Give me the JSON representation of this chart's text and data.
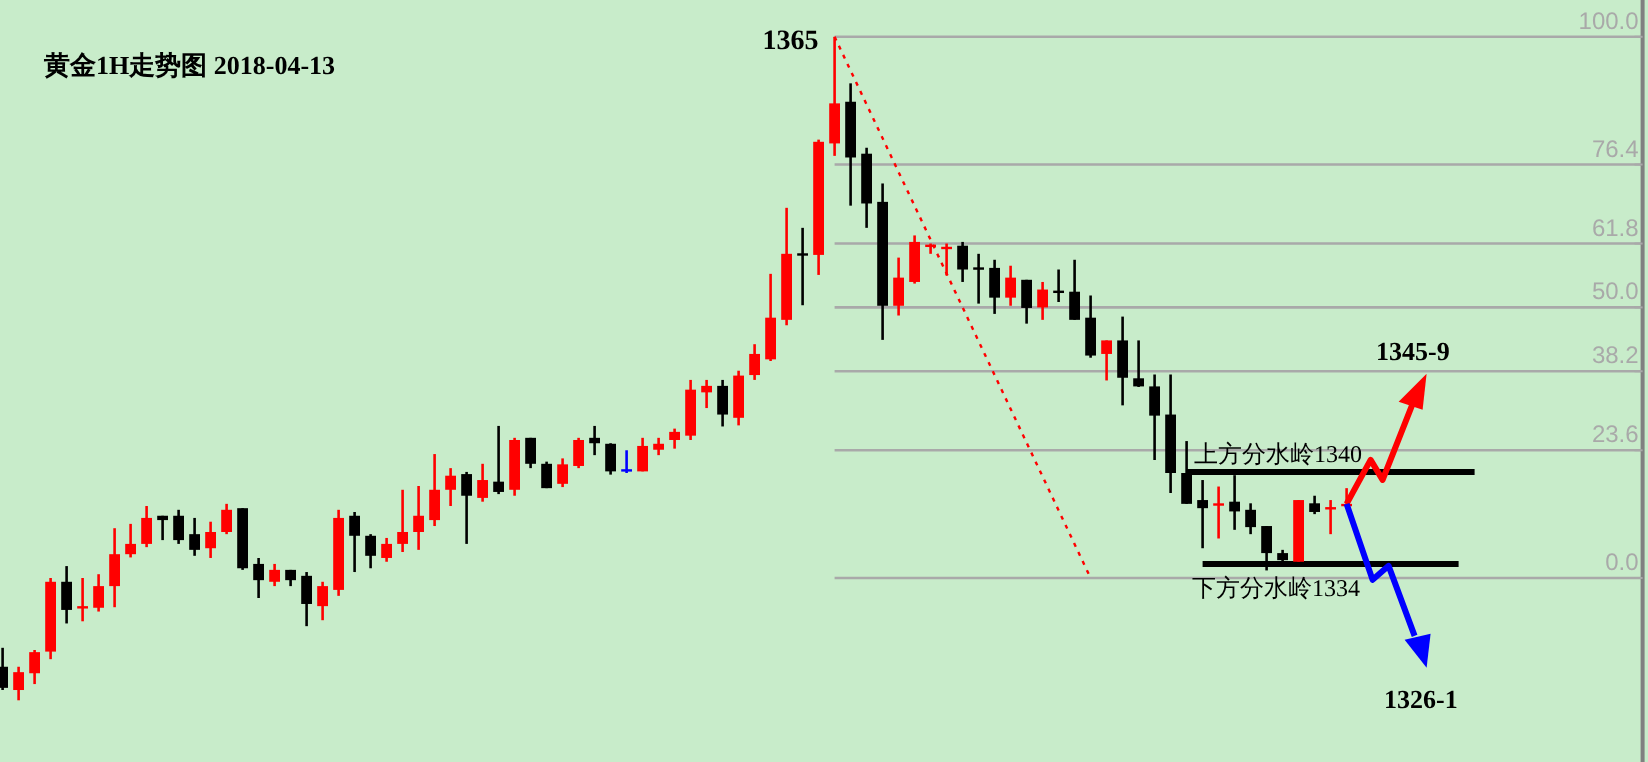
{
  "chart_data": {
    "type": "candlestick",
    "title": "黄金1H走势图 2018-04-13",
    "categories": [
      null,
      null,
      null,
      null,
      null,
      null,
      null,
      null,
      null,
      null,
      null,
      null,
      null,
      null,
      null,
      null,
      null,
      null,
      null,
      null,
      null,
      null,
      null,
      null,
      null,
      null,
      null,
      null,
      null,
      null,
      null,
      null,
      null,
      null,
      null,
      null,
      null,
      null,
      null,
      null,
      null,
      null,
      null,
      null,
      null,
      null,
      null,
      null,
      null,
      null,
      null,
      null,
      null,
      null,
      null,
      null,
      null,
      null,
      null,
      null,
      null,
      null,
      null,
      null,
      null,
      null,
      null,
      null,
      null,
      null,
      null,
      null,
      null,
      null,
      null,
      null,
      null,
      null,
      null,
      null,
      null,
      null,
      null,
      null,
      null,
      null,
      null,
      null,
      null,
      null,
      null,
      null,
      null,
      null,
      null,
      null,
      null,
      null,
      null,
      null,
      null,
      null,
      null
    ],
    "ohlc": [
      [
        -16.4,
        -12.9,
        -20.7,
        -20.3
      ],
      [
        -20.7,
        -16.4,
        -22.6,
        -17.4
      ],
      [
        -17.6,
        -13.3,
        -19.6,
        -13.7
      ],
      [
        -13.6,
        0,
        -15,
        -0.7
      ],
      [
        -0.7,
        2.2,
        -8.4,
        -5.9
      ],
      [
        -5.4,
        0,
        -8,
        -5.2
      ],
      [
        -5.5,
        0.7,
        -6.2,
        -1.5
      ],
      [
        -1.5,
        9.2,
        -5.4,
        4.4
      ],
      [
        4.4,
        10,
        3.8,
        6.3
      ],
      [
        6.3,
        13.3,
        5.7,
        11.1
      ],
      [
        11.5,
        11.5,
        7,
        10.7
      ],
      [
        11.5,
        12.6,
        6.3,
        7
      ],
      [
        8.1,
        11.1,
        4.1,
        5.2
      ],
      [
        5.5,
        10.4,
        3.7,
        8.5
      ],
      [
        8.5,
        13.7,
        8.1,
        12.6
      ],
      [
        12.9,
        12.9,
        1.5,
        1.8
      ],
      [
        2.6,
        3.7,
        -3.7,
        -0.4
      ],
      [
        -0.7,
        2.6,
        -1.5,
        1.5
      ],
      [
        1.5,
        1.5,
        -1.5,
        -0.4
      ],
      [
        0.4,
        1.1,
        -8.9,
        -4.8
      ],
      [
        -5.2,
        -0.7,
        -7.8,
        -1.5
      ],
      [
        -2.2,
        12.6,
        -3.3,
        11.1
      ],
      [
        11.5,
        12.2,
        1.1,
        7.8
      ],
      [
        7.8,
        8.1,
        1.8,
        4.1
      ],
      [
        3.7,
        7.4,
        3,
        6.3
      ],
      [
        6.3,
        16.3,
        4.8,
        8.5
      ],
      [
        8.5,
        17,
        5.2,
        11.5
      ],
      [
        10.7,
        22.9,
        9.6,
        16.3
      ],
      [
        16.3,
        20.3,
        13.3,
        18.9
      ],
      [
        19.2,
        19.6,
        6.3,
        15.2
      ],
      [
        14.8,
        21.1,
        14.1,
        18.1
      ],
      [
        17.8,
        28.1,
        15.5,
        15.9
      ],
      [
        16.3,
        25.9,
        15.2,
        25.5
      ],
      [
        25.9,
        25.9,
        20.3,
        21.1
      ],
      [
        21.1,
        21.5,
        16.6,
        16.6
      ],
      [
        17.4,
        22.1,
        16.8,
        21
      ],
      [
        20.7,
        25.9,
        20.3,
        25.5
      ],
      [
        25.9,
        28.1,
        22.7,
        24.9
      ],
      [
        24.8,
        24.9,
        19.1,
        19.7
      ],
      [
        20.1,
        23.6,
        19.4,
        20.1
      ],
      [
        19.7,
        25.9,
        19.7,
        24.4
      ],
      [
        23.7,
        25.9,
        22.7,
        24.8
      ],
      [
        25.5,
        27.6,
        23.9,
        27
      ],
      [
        26.3,
        36.6,
        25.5,
        34.8
      ],
      [
        34.3,
        36.6,
        31.4,
        35.5
      ],
      [
        35.5,
        36.6,
        28,
        30.2
      ],
      [
        29.6,
        38.3,
        28.2,
        37.4
      ],
      [
        37.5,
        43.2,
        36.6,
        41.4
      ],
      [
        40.4,
        56.2,
        40.1,
        48.1
      ],
      [
        47.7,
        68.4,
        46.7,
        59.9
      ],
      [
        60,
        64.7,
        50.4,
        59.8
      ],
      [
        59.7,
        81,
        56,
        80.6
      ],
      [
        80.3,
        100,
        78,
        87.7
      ],
      [
        88,
        91.4,
        68.8,
        77.7
      ],
      [
        78.4,
        79.5,
        64.7,
        69.2
      ],
      [
        69.5,
        72.9,
        44,
        50.3
      ],
      [
        50.3,
        59.2,
        48.5,
        55.5
      ],
      [
        54.7,
        63.3,
        54.4,
        62.1
      ],
      [
        61.4,
        61.8,
        59.9,
        61.6
      ],
      [
        61,
        61.8,
        55.9,
        61.2
      ],
      [
        61.4,
        62.1,
        54.7,
        57
      ],
      [
        57.4,
        59.9,
        50.7,
        57.2
      ],
      [
        57.3,
        58.8,
        48.8,
        51.8
      ],
      [
        51.8,
        57.7,
        50.3,
        55.5
      ],
      [
        55.1,
        55.1,
        47,
        49.9
      ],
      [
        50,
        54.7,
        47.7,
        53.3
      ],
      [
        53.1,
        57,
        51,
        52.9
      ],
      [
        52.9,
        58.8,
        47.7,
        47.7
      ],
      [
        48.1,
        52.2,
        40.7,
        41.1
      ],
      [
        41.4,
        43.9,
        36.5,
        43.9
      ],
      [
        43.9,
        48.3,
        31.9,
        37
      ],
      [
        36.9,
        43.9,
        35.3,
        35.4
      ],
      [
        35.4,
        37.6,
        21.8,
        30
      ],
      [
        30.2,
        37.6,
        15.7,
        19.4
      ],
      [
        19.4,
        25.3,
        13.7,
        13.7
      ],
      [
        14.4,
        18.1,
        5.5,
        12.9
      ],
      [
        13.6,
        16.9,
        7.3,
        13.8
      ],
      [
        14.1,
        19,
        8.9,
        12.3
      ],
      [
        12.6,
        13.8,
        8.1,
        9.4
      ],
      [
        9.6,
        9.6,
        1.4,
        4.6
      ],
      [
        4.6,
        5.2,
        3.1,
        3.3
      ],
      [
        3,
        14.4,
        3,
        14.4
      ],
      [
        13.8,
        15.2,
        11.8,
        12.2
      ],
      [
        12.8,
        14.4,
        8.1,
        13.1
      ],
      [
        13.4,
        16.6,
        12.9,
        13.7
      ],
      null,
      null,
      null,
      null,
      null,
      null,
      null,
      null,
      null,
      null,
      null,
      null,
      null,
      null,
      null,
      null,
      null,
      null
    ],
    "colors": [
      "#000000",
      "#ff0000",
      "#ff0000",
      "#ff0000",
      "#000000",
      "#ff0000",
      "#ff0000",
      "#ff0000",
      "#ff0000",
      "#ff0000",
      "#000000",
      "#000000",
      "#000000",
      "#ff0000",
      "#ff0000",
      "#000000",
      "#000000",
      "#ff0000",
      "#000000",
      "#000000",
      "#ff0000",
      "#ff0000",
      "#000000",
      "#000000",
      "#ff0000",
      "#ff0000",
      "#ff0000",
      "#ff0000",
      "#ff0000",
      "#000000",
      "#ff0000",
      "#000000",
      "#ff0000",
      "#000000",
      "#000000",
      "#ff0000",
      "#ff0000",
      "#000000",
      "#000000",
      "#0000ff",
      "#ff0000",
      "#ff0000",
      "#ff0000",
      "#ff0000",
      "#ff0000",
      "#000000",
      "#ff0000",
      "#ff0000",
      "#ff0000",
      "#ff0000",
      "#000000",
      "#ff0000",
      "#ff0000",
      "#000000",
      "#000000",
      "#000000",
      "#ff0000",
      "#ff0000",
      "#ff0000",
      "#ff0000",
      "#000000",
      "#000000",
      "#000000",
      "#ff0000",
      "#000000",
      "#ff0000",
      "#000000",
      "#000000",
      "#000000",
      "#ff0000",
      "#000000",
      "#000000",
      "#000000",
      "#000000",
      "#000000",
      "#000000",
      "#ff0000",
      "#000000",
      "#000000",
      "#000000",
      "#000000",
      "#ff0000",
      "#000000",
      "#ff0000",
      "#ff0000",
      null,
      null,
      null,
      null,
      null,
      null,
      null,
      null,
      null,
      null,
      null,
      null,
      null,
      null,
      null,
      null,
      null,
      null
    ],
    "series": [
      {
        "type": "line",
        "color": "#ff0000",
        "line_style": "dotted",
        "values": [
          null,
          null,
          null,
          null,
          null,
          null,
          null,
          null,
          null,
          null,
          null,
          null,
          null,
          null,
          null,
          null,
          null,
          null,
          null,
          null,
          null,
          null,
          null,
          null,
          null,
          null,
          null,
          null,
          null,
          null,
          null,
          null,
          null,
          null,
          null,
          null,
          null,
          null,
          null,
          null,
          null,
          null,
          null,
          null,
          null,
          null,
          null,
          null,
          null,
          null,
          null,
          null,
          100,
          null,
          null,
          null,
          null,
          null,
          null,
          null,
          null,
          null,
          null,
          null,
          null,
          null,
          null,
          null,
          0,
          null,
          null,
          null,
          null,
          null,
          null,
          null,
          null,
          null,
          null,
          null,
          null,
          null,
          null,
          null,
          null,
          null,
          null,
          null,
          null,
          null,
          null,
          null,
          null,
          null,
          null,
          null,
          null,
          null,
          null,
          null,
          null,
          null,
          null
        ]
      },
      {
        "type": "line",
        "color": "#000000",
        "line_style": "solid",
        "values": [
          null,
          null,
          null,
          null,
          null,
          null,
          null,
          null,
          null,
          null,
          null,
          null,
          null,
          null,
          null,
          null,
          null,
          null,
          null,
          null,
          null,
          null,
          null,
          null,
          null,
          null,
          null,
          null,
          null,
          null,
          null,
          null,
          null,
          null,
          null,
          null,
          null,
          null,
          null,
          null,
          null,
          null,
          null,
          null,
          null,
          null,
          null,
          null,
          null,
          null,
          null,
          null,
          null,
          null,
          null,
          null,
          null,
          null,
          null,
          null,
          null,
          null,
          null,
          null,
          null,
          null,
          null,
          null,
          null,
          null,
          null,
          null,
          null,
          null,
          19.6,
          null,
          null,
          null,
          null,
          null,
          null,
          null,
          null,
          null,
          null,
          null,
          null,
          null,
          null,
          null,
          null,
          null,
          19.6,
          null,
          null,
          null,
          null,
          null,
          null,
          null,
          null,
          null,
          null
        ]
      },
      {
        "type": "line",
        "color": "#000000",
        "line_style": "solid",
        "values": [
          null,
          null,
          null,
          null,
          null,
          null,
          null,
          null,
          null,
          null,
          null,
          null,
          null,
          null,
          null,
          null,
          null,
          null,
          null,
          null,
          null,
          null,
          null,
          null,
          null,
          null,
          null,
          null,
          null,
          null,
          null,
          null,
          null,
          null,
          null,
          null,
          null,
          null,
          null,
          null,
          null,
          null,
          null,
          null,
          null,
          null,
          null,
          null,
          null,
          null,
          null,
          null,
          null,
          null,
          null,
          null,
          null,
          null,
          null,
          null,
          null,
          null,
          null,
          null,
          null,
          null,
          null,
          null,
          null,
          null,
          null,
          null,
          null,
          null,
          null,
          2.6,
          null,
          null,
          null,
          null,
          null,
          null,
          null,
          null,
          null,
          null,
          null,
          null,
          null,
          null,
          null,
          2.6,
          null,
          null,
          null,
          null,
          null,
          null,
          null,
          null,
          null,
          null,
          null
        ]
      }
    ],
    "ylim": [
      -34,
      106.8
    ],
    "yticks": [
      {
        "value": 0,
        "label": "0.0"
      },
      {
        "value": 23.6,
        "label": "23.6"
      },
      {
        "value": 38.2,
        "label": "38.2"
      },
      {
        "value": 50,
        "label": "50.0"
      },
      {
        "value": 61.8,
        "label": "61.8"
      },
      {
        "value": 76.4,
        "label": "76.4"
      },
      {
        "value": 100,
        "label": "100.0"
      }
    ],
    "tick_labels": "y",
    "ref_lines": [
      {
        "axis": "y",
        "value": 0,
        "color": "#a9a9a9"
      },
      {
        "axis": "y",
        "value": 23.6,
        "color": "#a9a9a9"
      },
      {
        "axis": "y",
        "value": 38.2,
        "color": "#a9a9a9"
      },
      {
        "axis": "y",
        "value": 50,
        "color": "#a9a9a9"
      },
      {
        "axis": "y",
        "value": 61.8,
        "color": "#a9a9a9"
      },
      {
        "axis": "y",
        "value": 76.4,
        "color": "#a9a9a9"
      },
      {
        "axis": "y",
        "value": 100,
        "color": "#a9a9a9"
      }
    ],
    "annotations": [
      "1365",
      "上方分水岭1340",
      "下方分水岭1334",
      "1345-9",
      "1326-1"
    ]
  }
}
